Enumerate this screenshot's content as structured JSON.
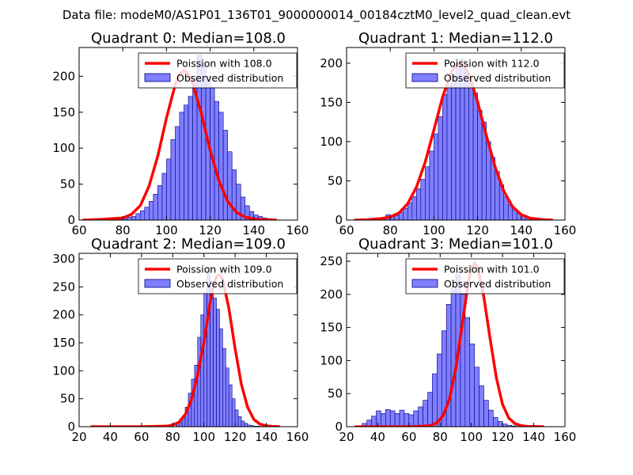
{
  "chart_data": {
    "type": "bar",
    "suptitle": "Data file: modeM0/AS1P01_136T01_9000000014_00184cztM0_level2_quad_clean.evt",
    "legend_curve_prefix": "Poission with ",
    "legend_hist_label": "Observed distribution",
    "legend_position": "top-right",
    "colors": {
      "bar_fill": "#7f7fff",
      "bar_edge": "#000080",
      "curve": "#ff0000"
    },
    "panels": [
      {
        "title": "Quadrant 0: Median=108.0",
        "median": 108.0,
        "poisson_label": "108.0",
        "xlim": [
          60,
          160
        ],
        "ylim": [
          0,
          240
        ],
        "xticks": [
          60,
          80,
          100,
          120,
          140,
          160
        ],
        "yticks": [
          0,
          50,
          100,
          150,
          200
        ],
        "bin_start": 70,
        "bin_width": 2,
        "counts": [
          1,
          2,
          1,
          3,
          3,
          2,
          4,
          5,
          9,
          13,
          18,
          26,
          36,
          48,
          65,
          85,
          112,
          130,
          150,
          160,
          172,
          200,
          230,
          215,
          200,
          185,
          165,
          150,
          125,
          95,
          70,
          50,
          32,
          20,
          12,
          7,
          5,
          3,
          2,
          1
        ],
        "curve_x": [
          62,
          70,
          80,
          84,
          88,
          92,
          96,
          100,
          104,
          106,
          108,
          110,
          112,
          116,
          120,
          124,
          128,
          132,
          136,
          140,
          144,
          150
        ],
        "curve_y": [
          0,
          1,
          3,
          8,
          20,
          47,
          89,
          142,
          188,
          203,
          208,
          203,
          190,
          148,
          97,
          55,
          26,
          11,
          4,
          1.5,
          0.5,
          0.1
        ]
      },
      {
        "title": "Quadrant 1: Median=112.0",
        "median": 112.0,
        "poisson_label": "112.0",
        "xlim": [
          60,
          160
        ],
        "ylim": [
          0,
          220
        ],
        "xticks": [
          60,
          80,
          100,
          120,
          140,
          160
        ],
        "yticks": [
          0,
          50,
          100,
          150,
          200
        ],
        "bin_start": 72,
        "bin_width": 2,
        "counts": [
          1,
          2,
          3,
          7,
          5,
          6,
          10,
          15,
          22,
          30,
          40,
          52,
          68,
          88,
          110,
          132,
          160,
          172,
          185,
          200,
          205,
          190,
          175,
          162,
          140,
          125,
          100,
          80,
          62,
          45,
          30,
          20,
          14,
          9,
          6,
          4,
          3,
          2,
          1,
          1
        ],
        "curve_x": [
          64,
          70,
          76,
          80,
          84,
          88,
          92,
          96,
          100,
          104,
          108,
          110,
          112,
          114,
          116,
          120,
          124,
          128,
          132,
          136,
          140,
          144,
          150,
          154
        ],
        "curve_y": [
          0,
          0.5,
          2,
          4,
          9,
          21,
          42,
          74,
          115,
          157,
          189,
          197,
          200,
          196,
          186,
          151,
          108,
          68,
          37,
          17,
          7,
          2.5,
          0.5,
          0.1
        ]
      },
      {
        "title": "Quadrant 2: Median=109.0",
        "median": 109.0,
        "poisson_label": "109.0",
        "xlim": [
          20,
          160
        ],
        "ylim": [
          0,
          310
        ],
        "xticks": [
          20,
          40,
          60,
          80,
          100,
          120,
          140,
          160
        ],
        "yticks": [
          0,
          50,
          100,
          150,
          200,
          250,
          300
        ],
        "bin_start": 82,
        "bin_width": 2,
        "counts": [
          3,
          8,
          18,
          35,
          60,
          85,
          110,
          160,
          200,
          240,
          285,
          260,
          230,
          210,
          175,
          140,
          105,
          75,
          50,
          30,
          18,
          10,
          6,
          3,
          2,
          1,
          1
        ],
        "curve_x": [
          28,
          60,
          76,
          80,
          84,
          88,
          92,
          96,
          100,
          104,
          106,
          108,
          110,
          112,
          116,
          120,
          124,
          128,
          132,
          136,
          140,
          144,
          148
        ],
        "curve_y": [
          0,
          0,
          1,
          3,
          8,
          22,
          48,
          93,
          151,
          222,
          250,
          268,
          272,
          264,
          211,
          140,
          76,
          35,
          13,
          4.5,
          1.5,
          0.5,
          0.1
        ]
      },
      {
        "title": "Quadrant 3: Median=101.0",
        "median": 101.0,
        "poisson_label": "101.0",
        "xlim": [
          20,
          160
        ],
        "ylim": [
          0,
          262
        ],
        "xticks": [
          20,
          40,
          60,
          80,
          100,
          120,
          140,
          160
        ],
        "yticks": [
          0,
          50,
          100,
          150,
          200,
          250
        ],
        "bin_start": 30,
        "bin_width": 3,
        "counts": [
          5,
          10,
          16,
          24,
          20,
          26,
          24,
          20,
          25,
          20,
          18,
          24,
          30,
          40,
          52,
          80,
          110,
          145,
          185,
          210,
          230,
          200,
          165,
          125,
          90,
          62,
          40,
          25,
          14,
          8,
          4,
          2,
          1
        ],
        "curve_x": [
          26,
          60,
          70,
          74,
          78,
          82,
          86,
          90,
          94,
          98,
          100,
          102,
          104,
          108,
          112,
          116,
          120,
          124,
          128,
          132,
          136,
          140,
          146
        ],
        "curve_y": [
          0,
          0,
          1,
          2,
          6,
          17,
          42,
          88,
          152,
          218,
          240,
          247,
          240,
          196,
          133,
          74,
          34,
          13,
          4.5,
          1.5,
          0.5,
          0.2,
          0
        ]
      }
    ]
  }
}
